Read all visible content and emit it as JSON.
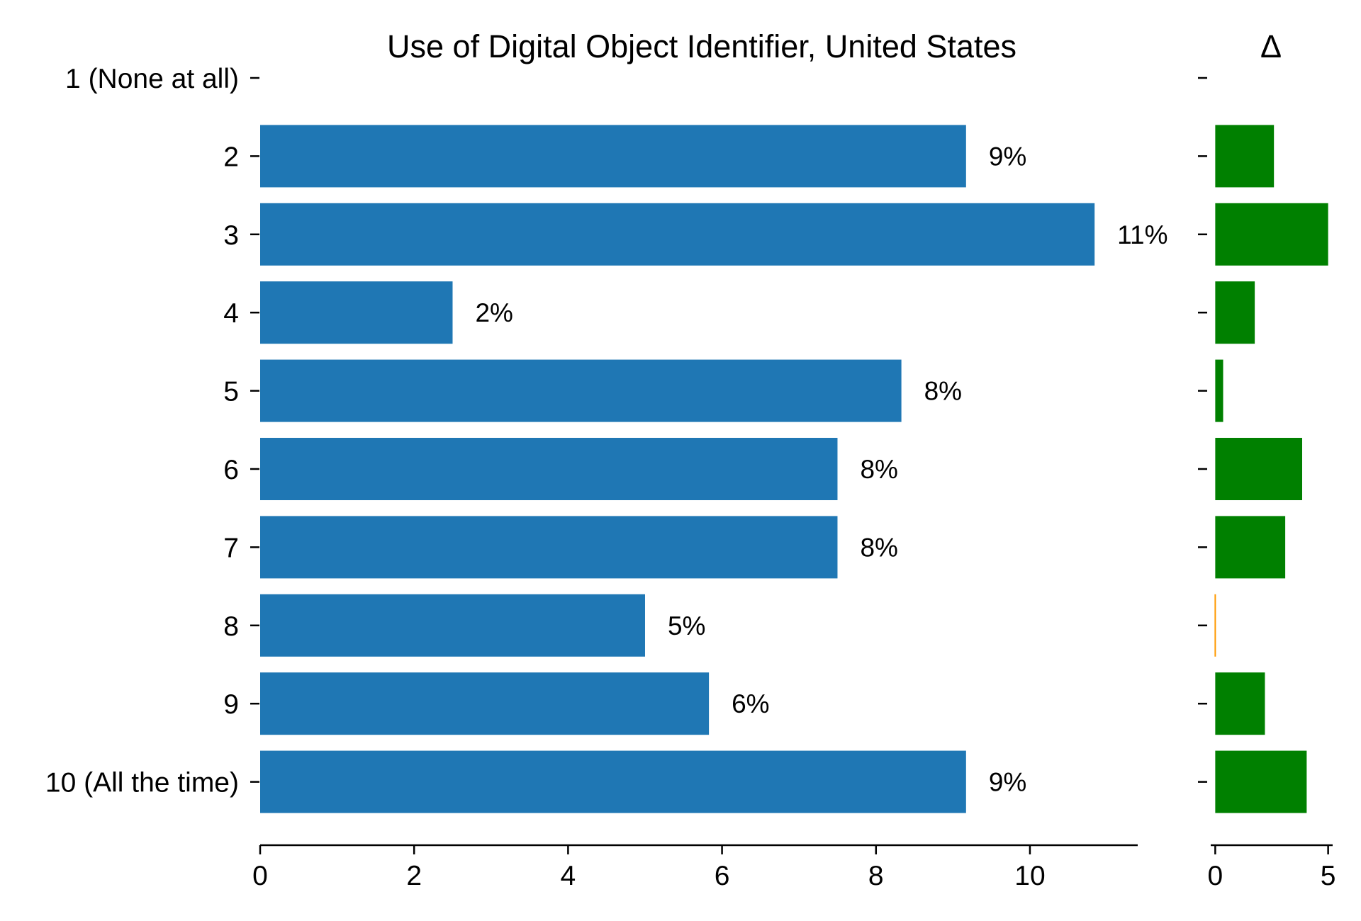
{
  "chart_data": [
    {
      "type": "bar",
      "orientation": "horizontal",
      "title": "Use of Digital Object Identifier, United States",
      "categories": [
        "1 (None at all)",
        "2",
        "3",
        "4",
        "5",
        "6",
        "7",
        "8",
        "9",
        "10 (All the time)"
      ],
      "values": [
        0,
        9.17,
        10.84,
        2.5,
        8.33,
        7.5,
        7.5,
        5.0,
        5.83,
        9.17
      ],
      "data_labels": [
        "",
        "9%",
        "11%",
        "2%",
        "8%",
        "8%",
        "8%",
        "5%",
        "6%",
        "9%"
      ],
      "xlim": [
        0,
        11.4
      ],
      "xticks": [
        "0",
        "2",
        "4",
        "6",
        "8",
        "10"
      ],
      "xtick_values": [
        0,
        2,
        4,
        6,
        8,
        10
      ],
      "color": "#1f77b4",
      "grid": false
    },
    {
      "type": "bar",
      "orientation": "horizontal",
      "title": "Δ",
      "categories": [
        "1 (None at all)",
        "2",
        "3",
        "4",
        "5",
        "6",
        "7",
        "8",
        "9",
        "10 (All the time)"
      ],
      "values": [
        0,
        2.6,
        5.0,
        1.75,
        0.35,
        3.85,
        3.1,
        0,
        2.2,
        4.05
      ],
      "xlim": [
        -0.2,
        5.2
      ],
      "xticks": [
        "0",
        "5"
      ],
      "xtick_values": [
        0,
        5
      ],
      "positive_color": "#008000",
      "zero_color": "#ff9900",
      "grid": false
    }
  ]
}
